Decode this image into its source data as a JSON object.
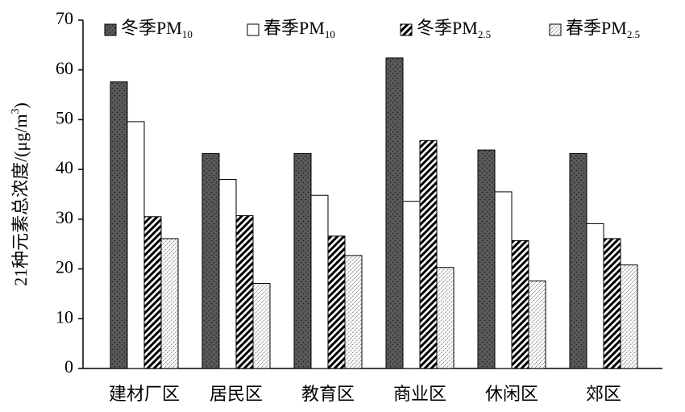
{
  "chart_data": {
    "type": "bar",
    "y_label": "21种元素总浓度/(μg/m3)",
    "categories": [
      "建材厂区",
      "居民区",
      "教育区",
      "商业区",
      "休闲区",
      "郊区"
    ],
    "series": [
      {
        "name": "冬季PM10",
        "color": "#5a5a5a",
        "pattern": "dots",
        "values": [
          57.6,
          43.2,
          43.2,
          62.4,
          43.9,
          43.2
        ]
      },
      {
        "name": "春季PM10",
        "color": "#ffffff",
        "pattern": "solid",
        "values": [
          49.6,
          38.0,
          34.8,
          33.6,
          35.5,
          29.1
        ]
      },
      {
        "name": "冬季PM2.5",
        "color": "#000000",
        "pattern": "hatch",
        "values": [
          30.5,
          30.7,
          26.6,
          45.8,
          25.7,
          26.1
        ]
      },
      {
        "name": "春季PM2.5",
        "color": "#8a8a8a",
        "pattern": "light-hatch",
        "values": [
          26.1,
          17.1,
          22.7,
          20.3,
          17.6,
          20.8
        ]
      }
    ],
    "ylim": [
      0,
      70
    ],
    "yticks": [
      0,
      10,
      20,
      30,
      40,
      50,
      60,
      70
    ],
    "legend": "top"
  }
}
